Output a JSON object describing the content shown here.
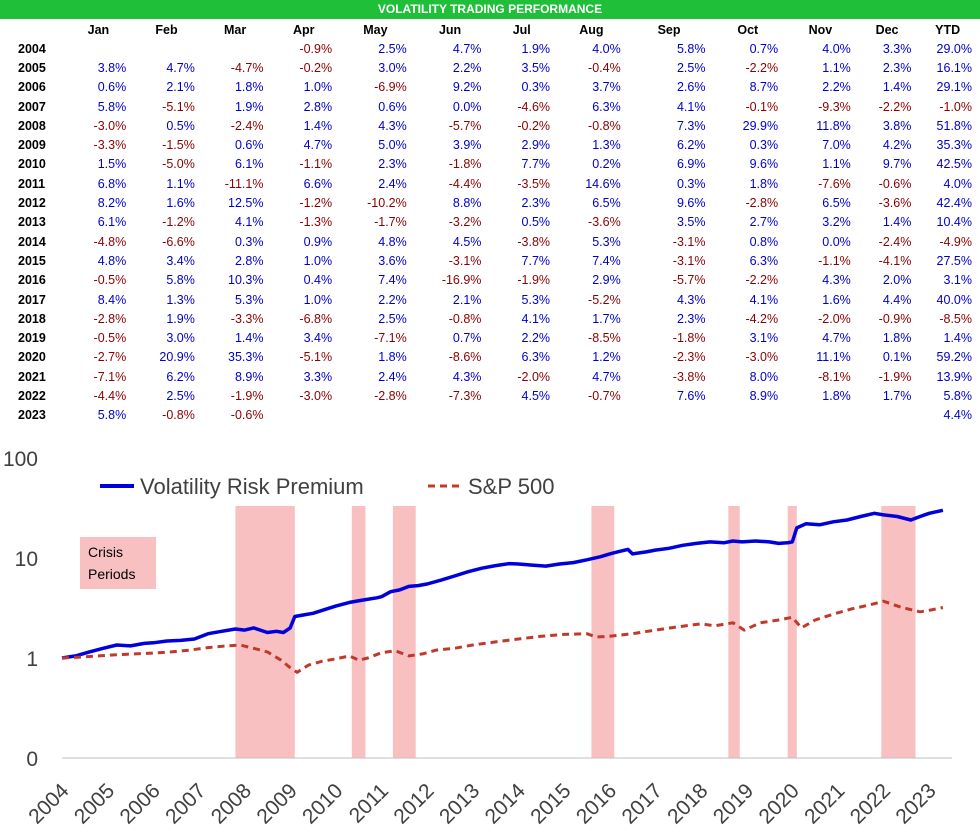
{
  "table": {
    "title": "VOLATILITY TRADING PERFORMANCE",
    "columns": [
      "Jan",
      "Feb",
      "Mar",
      "Apr",
      "May",
      "Jun",
      "Jul",
      "Aug",
      "Sep",
      "Oct",
      "Nov",
      "Dec",
      "YTD"
    ],
    "rows": [
      {
        "year": "2004",
        "values": [
          "",
          "",
          "",
          "-0.9%",
          "2.5%",
          "4.7%",
          "1.9%",
          "4.0%",
          "5.8%",
          "0.7%",
          "4.0%",
          "3.3%",
          "29.0%"
        ]
      },
      {
        "year": "2005",
        "values": [
          "3.8%",
          "4.7%",
          "-4.7%",
          "-0.2%",
          "3.0%",
          "2.2%",
          "3.5%",
          "-0.4%",
          "2.5%",
          "-2.2%",
          "1.1%",
          "2.3%",
          "16.1%"
        ]
      },
      {
        "year": "2006",
        "values": [
          "0.6%",
          "2.1%",
          "1.8%",
          "1.0%",
          "-6.9%",
          "9.2%",
          "0.3%",
          "3.7%",
          "2.6%",
          "8.7%",
          "2.2%",
          "1.4%",
          "29.1%"
        ]
      },
      {
        "year": "2007",
        "values": [
          "5.8%",
          "-5.1%",
          "1.9%",
          "2.8%",
          "0.6%",
          "0.0%",
          "-4.6%",
          "6.3%",
          "4.1%",
          "-0.1%",
          "-9.3%",
          "-2.2%",
          "-1.0%"
        ]
      },
      {
        "year": "2008",
        "values": [
          "-3.0%",
          "0.5%",
          "-2.4%",
          "1.4%",
          "4.3%",
          "-5.7%",
          "-0.2%",
          "-0.8%",
          "7.3%",
          "29.9%",
          "11.8%",
          "3.8%",
          "51.8%"
        ]
      },
      {
        "year": "2009",
        "values": [
          "-3.3%",
          "-1.5%",
          "0.6%",
          "4.7%",
          "5.0%",
          "3.9%",
          "2.9%",
          "1.3%",
          "6.2%",
          "0.3%",
          "7.0%",
          "4.2%",
          "35.3%"
        ]
      },
      {
        "year": "2010",
        "values": [
          "1.5%",
          "-5.0%",
          "6.1%",
          "-1.1%",
          "2.3%",
          "-1.8%",
          "7.7%",
          "0.2%",
          "6.9%",
          "9.6%",
          "1.1%",
          "9.7%",
          "42.5%"
        ]
      },
      {
        "year": "2011",
        "values": [
          "6.8%",
          "1.1%",
          "-11.1%",
          "6.6%",
          "2.4%",
          "-4.4%",
          "-3.5%",
          "14.6%",
          "0.3%",
          "1.8%",
          "-7.6%",
          "-0.6%",
          "4.0%"
        ]
      },
      {
        "year": "2012",
        "values": [
          "8.2%",
          "1.6%",
          "12.5%",
          "-1.2%",
          "-10.2%",
          "8.8%",
          "2.3%",
          "6.5%",
          "9.6%",
          "-2.8%",
          "6.5%",
          "-3.6%",
          "42.4%"
        ]
      },
      {
        "year": "2013",
        "values": [
          "6.1%",
          "-1.2%",
          "4.1%",
          "-1.3%",
          "-1.7%",
          "-3.2%",
          "0.5%",
          "-3.6%",
          "3.5%",
          "2.7%",
          "3.2%",
          "1.4%",
          "10.4%"
        ]
      },
      {
        "year": "2014",
        "values": [
          "-4.8%",
          "-6.6%",
          "0.3%",
          "0.9%",
          "4.8%",
          "4.5%",
          "-3.8%",
          "5.3%",
          "-3.1%",
          "0.8%",
          "0.0%",
          "-2.4%",
          "-4.9%"
        ]
      },
      {
        "year": "2015",
        "values": [
          "4.8%",
          "3.4%",
          "2.8%",
          "1.0%",
          "3.6%",
          "-3.1%",
          "7.7%",
          "7.4%",
          "-3.1%",
          "6.3%",
          "-1.1%",
          "-4.1%",
          "27.5%"
        ]
      },
      {
        "year": "2016",
        "values": [
          "-0.5%",
          "5.8%",
          "10.3%",
          "0.4%",
          "7.4%",
          "-16.9%",
          "-1.9%",
          "2.9%",
          "-5.7%",
          "-2.2%",
          "4.3%",
          "2.0%",
          "3.1%"
        ]
      },
      {
        "year": "2017",
        "values": [
          "8.4%",
          "1.3%",
          "5.3%",
          "1.0%",
          "2.2%",
          "2.1%",
          "5.3%",
          "-5.2%",
          "4.3%",
          "4.1%",
          "1.6%",
          "4.4%",
          "40.0%"
        ]
      },
      {
        "year": "2018",
        "values": [
          "-2.8%",
          "1.9%",
          "-3.3%",
          "-6.8%",
          "2.5%",
          "-0.8%",
          "4.1%",
          "1.7%",
          "2.3%",
          "-4.2%",
          "-2.0%",
          "-0.9%",
          "-8.5%"
        ]
      },
      {
        "year": "2019",
        "values": [
          "-0.5%",
          "3.0%",
          "1.4%",
          "3.4%",
          "-7.1%",
          "0.7%",
          "2.2%",
          "-8.5%",
          "-1.8%",
          "3.1%",
          "4.7%",
          "1.8%",
          "1.4%"
        ]
      },
      {
        "year": "2020",
        "values": [
          "-2.7%",
          "20.9%",
          "35.3%",
          "-5.1%",
          "1.8%",
          "-8.6%",
          "6.3%",
          "1.2%",
          "-2.3%",
          "-3.0%",
          "11.1%",
          "0.1%",
          "59.2%"
        ]
      },
      {
        "year": "2021",
        "values": [
          "-7.1%",
          "6.2%",
          "8.9%",
          "3.3%",
          "2.4%",
          "4.3%",
          "-2.0%",
          "4.7%",
          "-3.8%",
          "8.0%",
          "-8.1%",
          "-1.9%",
          "13.9%"
        ]
      },
      {
        "year": "2022",
        "values": [
          "-4.4%",
          "2.5%",
          "-1.9%",
          "-3.0%",
          "-2.8%",
          "-7.3%",
          "4.5%",
          "-0.7%",
          "7.6%",
          "8.9%",
          "1.8%",
          "1.7%",
          "5.8%"
        ]
      },
      {
        "year": "2023",
        "values": [
          "5.8%",
          "-0.8%",
          "-0.6%",
          "",
          "",
          "",
          "",
          "",
          "",
          "",
          "",
          "",
          "4.4%"
        ]
      }
    ]
  },
  "colors": {
    "banner": "#1fbf3a",
    "positive": "#0000cc",
    "negative": "#8b0000",
    "vrp_line": "#0000dd",
    "spx_line": "#c0392b",
    "crisis_fill": "#f8c0c0"
  },
  "chart_data": {
    "type": "line",
    "scale_y": "log",
    "ylim": [
      0.1,
      100
    ],
    "yticks": [
      {
        "value": 100,
        "label": "100"
      },
      {
        "value": 10,
        "label": "10"
      },
      {
        "value": 1,
        "label": "1"
      },
      {
        "value": 0.1,
        "label": "0"
      }
    ],
    "xlim": [
      2004,
      2023.5
    ],
    "xticks": [
      "2004",
      "2005",
      "2006",
      "2007",
      "2008",
      "2009",
      "2010",
      "2011",
      "2012",
      "2013",
      "2014",
      "2015",
      "2016",
      "2017",
      "2018",
      "2019",
      "2020",
      "2021",
      "2022",
      "2023"
    ],
    "legend_position": "top-left",
    "crisis_label": [
      "Crisis",
      "Periods"
    ],
    "crisis_periods": [
      [
        2007.8,
        2009.1
      ],
      [
        2010.35,
        2010.65
      ],
      [
        2011.25,
        2011.75
      ],
      [
        2015.6,
        2016.1
      ],
      [
        2018.6,
        2018.85
      ],
      [
        2019.9,
        2020.1
      ],
      [
        2021.95,
        2022.7
      ]
    ],
    "series": [
      {
        "name": "Volatility Risk Premium",
        "style": "solid",
        "points": [
          [
            2004.0,
            1.0
          ],
          [
            2004.3,
            1.05
          ],
          [
            2004.6,
            1.15
          ],
          [
            2004.9,
            1.25
          ],
          [
            2005.2,
            1.35
          ],
          [
            2005.5,
            1.32
          ],
          [
            2005.8,
            1.4
          ],
          [
            2006.0,
            1.42
          ],
          [
            2006.3,
            1.48
          ],
          [
            2006.6,
            1.5
          ],
          [
            2006.9,
            1.55
          ],
          [
            2007.2,
            1.75
          ],
          [
            2007.5,
            1.85
          ],
          [
            2007.8,
            1.95
          ],
          [
            2008.0,
            1.9
          ],
          [
            2008.2,
            2.0
          ],
          [
            2008.5,
            1.8
          ],
          [
            2008.7,
            1.85
          ],
          [
            2008.85,
            1.8
          ],
          [
            2009.0,
            2.0
          ],
          [
            2009.1,
            2.6
          ],
          [
            2009.3,
            2.7
          ],
          [
            2009.5,
            2.8
          ],
          [
            2009.8,
            3.1
          ],
          [
            2010.0,
            3.3
          ],
          [
            2010.3,
            3.6
          ],
          [
            2010.6,
            3.8
          ],
          [
            2010.9,
            4.0
          ],
          [
            2011.0,
            4.1
          ],
          [
            2011.2,
            4.6
          ],
          [
            2011.4,
            4.8
          ],
          [
            2011.6,
            5.2
          ],
          [
            2011.8,
            5.3
          ],
          [
            2012.0,
            5.5
          ],
          [
            2012.3,
            6.0
          ],
          [
            2012.6,
            6.6
          ],
          [
            2012.9,
            7.3
          ],
          [
            2013.2,
            7.9
          ],
          [
            2013.5,
            8.4
          ],
          [
            2013.8,
            8.8
          ],
          [
            2014.0,
            8.7
          ],
          [
            2014.3,
            8.5
          ],
          [
            2014.6,
            8.3
          ],
          [
            2014.9,
            8.7
          ],
          [
            2015.2,
            9.0
          ],
          [
            2015.5,
            9.6
          ],
          [
            2015.8,
            10.3
          ],
          [
            2016.0,
            11.0
          ],
          [
            2016.2,
            11.6
          ],
          [
            2016.4,
            12.2
          ],
          [
            2016.5,
            11.0
          ],
          [
            2016.8,
            11.5
          ],
          [
            2017.0,
            12.0
          ],
          [
            2017.3,
            12.5
          ],
          [
            2017.6,
            13.4
          ],
          [
            2017.9,
            14.0
          ],
          [
            2018.2,
            14.5
          ],
          [
            2018.5,
            14.2
          ],
          [
            2018.7,
            14.8
          ],
          [
            2018.9,
            14.5
          ],
          [
            2019.2,
            14.8
          ],
          [
            2019.5,
            14.5
          ],
          [
            2019.7,
            14.0
          ],
          [
            2019.9,
            14.2
          ],
          [
            2020.0,
            14.5
          ],
          [
            2020.1,
            20.0
          ],
          [
            2020.3,
            22.0
          ],
          [
            2020.6,
            21.5
          ],
          [
            2020.9,
            23.0
          ],
          [
            2021.2,
            24.0
          ],
          [
            2021.5,
            26.0
          ],
          [
            2021.8,
            28.0
          ],
          [
            2022.0,
            27.0
          ],
          [
            2022.3,
            26.0
          ],
          [
            2022.6,
            24.0
          ],
          [
            2022.8,
            26.0
          ],
          [
            2023.0,
            28.0
          ],
          [
            2023.3,
            30.0
          ]
        ]
      },
      {
        "name": "S&P 500",
        "style": "dashed",
        "points": [
          [
            2004.0,
            1.0
          ],
          [
            2004.4,
            1.02
          ],
          [
            2004.8,
            1.05
          ],
          [
            2005.2,
            1.08
          ],
          [
            2005.6,
            1.1
          ],
          [
            2006.0,
            1.12
          ],
          [
            2006.4,
            1.15
          ],
          [
            2006.8,
            1.2
          ],
          [
            2007.2,
            1.27
          ],
          [
            2007.6,
            1.32
          ],
          [
            2007.9,
            1.35
          ],
          [
            2008.2,
            1.25
          ],
          [
            2008.5,
            1.15
          ],
          [
            2008.8,
            0.95
          ],
          [
            2009.0,
            0.8
          ],
          [
            2009.15,
            0.72
          ],
          [
            2009.4,
            0.85
          ],
          [
            2009.7,
            0.93
          ],
          [
            2010.0,
            0.98
          ],
          [
            2010.3,
            1.05
          ],
          [
            2010.5,
            0.95
          ],
          [
            2010.7,
            1.0
          ],
          [
            2011.0,
            1.13
          ],
          [
            2011.3,
            1.18
          ],
          [
            2011.6,
            1.05
          ],
          [
            2011.9,
            1.1
          ],
          [
            2012.2,
            1.2
          ],
          [
            2012.6,
            1.25
          ],
          [
            2013.0,
            1.35
          ],
          [
            2013.5,
            1.45
          ],
          [
            2014.0,
            1.55
          ],
          [
            2014.5,
            1.65
          ],
          [
            2015.0,
            1.72
          ],
          [
            2015.5,
            1.75
          ],
          [
            2015.7,
            1.62
          ],
          [
            2016.0,
            1.65
          ],
          [
            2016.5,
            1.75
          ],
          [
            2017.0,
            1.9
          ],
          [
            2017.5,
            2.05
          ],
          [
            2018.0,
            2.2
          ],
          [
            2018.3,
            2.1
          ],
          [
            2018.7,
            2.25
          ],
          [
            2018.95,
            1.9
          ],
          [
            2019.3,
            2.25
          ],
          [
            2019.7,
            2.4
          ],
          [
            2020.0,
            2.55
          ],
          [
            2020.2,
            2.0
          ],
          [
            2020.5,
            2.4
          ],
          [
            2020.9,
            2.75
          ],
          [
            2021.3,
            3.1
          ],
          [
            2021.7,
            3.4
          ],
          [
            2022.0,
            3.7
          ],
          [
            2022.4,
            3.2
          ],
          [
            2022.8,
            2.9
          ],
          [
            2023.0,
            3.0
          ],
          [
            2023.3,
            3.2
          ]
        ]
      }
    ]
  }
}
